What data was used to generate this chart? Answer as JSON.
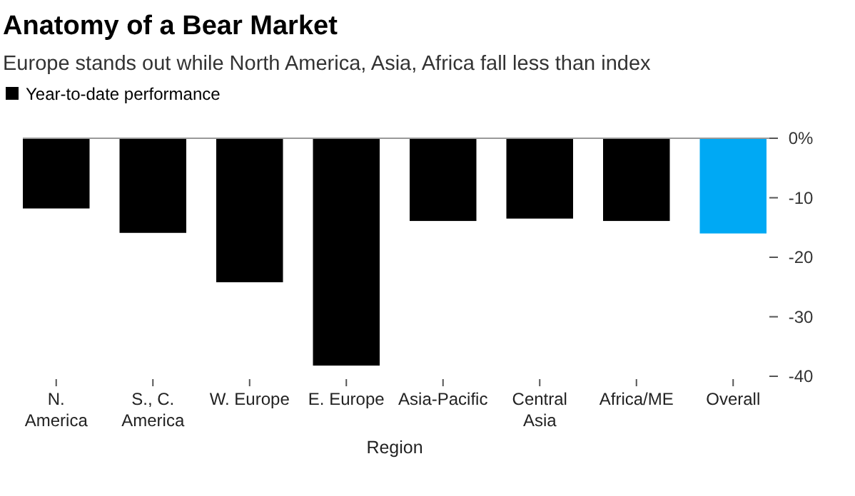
{
  "chart_data": {
    "type": "bar",
    "title": "Anatomy of a Bear Market",
    "subtitle": "Europe stands out while North America, Asia, Africa fall less than index",
    "xlabel": "Region",
    "categories": [
      "N. America",
      "S., C. America",
      "W. Europe",
      "E. Europe",
      "Asia-Pacific",
      "Central Asia",
      "Africa/ME",
      "Overall"
    ],
    "series": [
      {
        "name": "Year-to-date performance",
        "color": "#000000",
        "colors": [
          "#000000",
          "#000000",
          "#000000",
          "#000000",
          "#000000",
          "#000000",
          "#000000",
          "#00a9f4"
        ],
        "values": [
          -11.8,
          -15.9,
          -24.2,
          -38.2,
          -13.9,
          -13.5,
          -13.9,
          -16.0
        ]
      }
    ],
    "ylim": [
      -40,
      0
    ],
    "yticks": [
      {
        "value": 0,
        "label": "0%"
      },
      -10,
      -20,
      -30,
      -40
    ],
    "grid": false,
    "legend": "top left"
  }
}
